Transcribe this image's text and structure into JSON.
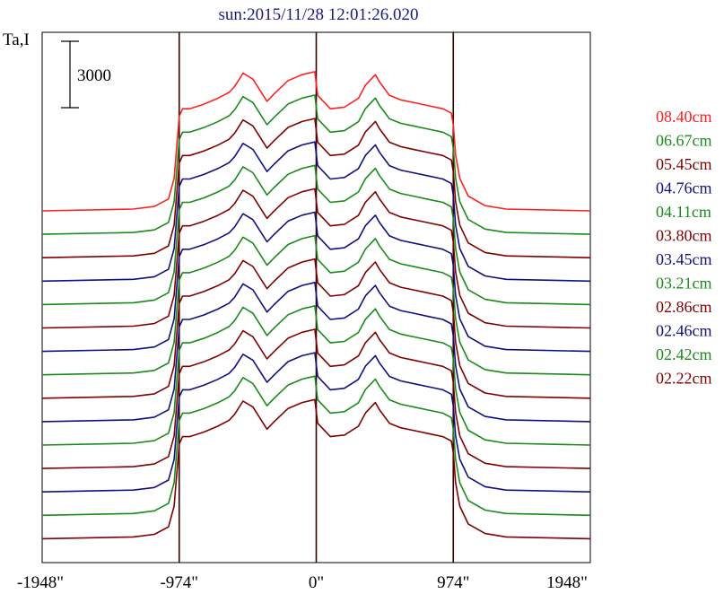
{
  "chart_data": {
    "type": "line",
    "title": "sun:2015/11/28 12:01:26.020",
    "ylabel": "Ta,I",
    "scale_bar_label": "3000",
    "scale_bar_value": 3000,
    "xlim": [
      -1948,
      1948
    ],
    "x_ticks": [
      -1948,
      -974,
      0,
      974,
      1948
    ],
    "x_tick_labels": [
      "-1948\"",
      "-974\"",
      "0\"",
      "974\"",
      "1948\""
    ],
    "vertical_lines": [
      -974,
      0,
      974
    ],
    "grid": false,
    "legend_position": "right",
    "colors": {
      "red": "#ff2020",
      "green": "#1a8a1a",
      "maroon": "#800000",
      "navy": "#101080",
      "axis": "#000000",
      "marker": "#3a0000",
      "title": "#1a1a80"
    },
    "x": [
      -1948,
      -1300,
      -1150,
      -1050,
      -1010,
      -990,
      -974,
      -950,
      -900,
      -800,
      -700,
      -620,
      -580,
      -520,
      -450,
      -350,
      -300,
      -200,
      -100,
      -10,
      10,
      100,
      200,
      300,
      350,
      420,
      450,
      520,
      600,
      700,
      800,
      900,
      960,
      974,
      990,
      1020,
      1080,
      1200,
      1350,
      1948
    ],
    "shape": [
      0,
      0.012,
      0.03,
      0.08,
      0.22,
      0.45,
      0.64,
      0.69,
      0.69,
      0.72,
      0.76,
      0.8,
      0.84,
      0.93,
      0.89,
      0.74,
      0.79,
      0.88,
      0.92,
      0.94,
      0.78,
      0.69,
      0.7,
      0.76,
      0.85,
      0.92,
      0.87,
      0.78,
      0.75,
      0.73,
      0.71,
      0.69,
      0.66,
      0.58,
      0.38,
      0.22,
      0.1,
      0.035,
      0.012,
      0
    ],
    "series": [
      {
        "name": "08.40cm",
        "color": "#ff2020",
        "scale": 1.0
      },
      {
        "name": "06.67cm",
        "color": "#1a8a1a",
        "scale": 1.0
      },
      {
        "name": "05.45cm",
        "color": "#800000",
        "scale": 1.0
      },
      {
        "name": "04.76cm",
        "color": "#101080",
        "scale": 1.0
      },
      {
        "name": "04.11cm",
        "color": "#1a8a1a",
        "scale": 1.0
      },
      {
        "name": "03.80cm",
        "color": "#800000",
        "scale": 1.0
      },
      {
        "name": "03.45cm",
        "color": "#101080",
        "scale": 1.0
      },
      {
        "name": "03.21cm",
        "color": "#1a8a1a",
        "scale": 1.0
      },
      {
        "name": "02.86cm",
        "color": "#800000",
        "scale": 1.0
      },
      {
        "name": "02.46cm",
        "color": "#101080",
        "scale": 1.0
      },
      {
        "name": "02.42cm",
        "color": "#1a8a1a",
        "scale": 1.0
      },
      {
        "name": "02.22cm",
        "color": "#800000",
        "scale": 1.0
      },
      {
        "color": "#101080",
        "scale": 1.0
      },
      {
        "color": "#1a8a1a",
        "scale": 1.0
      },
      {
        "color": "#800000",
        "scale": 1.0
      }
    ]
  }
}
